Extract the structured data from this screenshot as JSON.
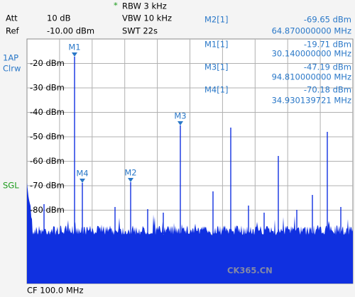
{
  "header": {
    "att_label": "Att",
    "att": "10 dB",
    "ref_label": "Ref",
    "ref": "-10.00 dBm",
    "rbw_star": "*",
    "rbw": "RBW 3 kHz",
    "vbw": "VBW 10 kHz",
    "swt": "SWT 22s"
  },
  "markers_table": [
    {
      "name": "M2[1]",
      "level": "-69.65 dBm",
      "freq": "64.870000000 MHz"
    },
    {
      "name": "M1[1]",
      "level": "-19.71 dBm",
      "freq": "30.140000000 MHz"
    },
    {
      "name": "M3[1]",
      "level": "-47.19 dBm",
      "freq": "94.810000000 MHz"
    },
    {
      "name": "M4[1]",
      "level": "-70.18 dBm",
      "freq": "34.930139721 MHz"
    }
  ],
  "side": {
    "trace": "1AP",
    "mode": "Clrw",
    "sweep": "SGL"
  },
  "y_axis_labels": [
    "-20 dBm",
    "-30 dBm",
    "-40 dBm",
    "-50 dBm",
    "-60 dBm",
    "-70 dBm",
    "-80 dBm"
  ],
  "marker_labels": [
    "M1",
    "M4",
    "M2",
    "M3"
  ],
  "footer": "CF 100.0 MHz",
  "watermark": "CK365.CN"
}
